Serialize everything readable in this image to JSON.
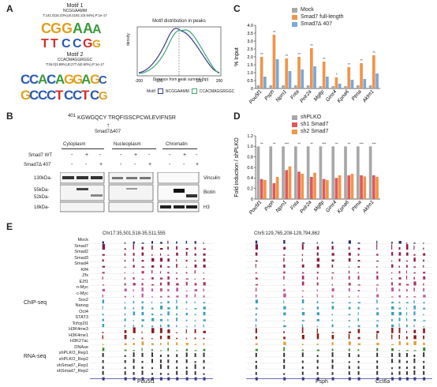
{
  "panels": {
    "A": "A",
    "B": "B",
    "C": "C",
    "D": "D",
    "E": "E"
  },
  "panel_a": {
    "motif1": {
      "title": "Motif 1",
      "seq": "NCGGAAMM",
      "stats": "T:141.0(15.23%),B:3192.1(6.94%),P:1e-17"
    },
    "motif2": {
      "title": "Motif 2",
      "seq": "CCACMAGGRGGC",
      "stats": "T:36.0(3.89%),B:277.6(0.60%),P:1e-17"
    },
    "dist_title": "Motif distribution in peaks",
    "ylabel": "density",
    "xlabel": "Distance from peak summit (bp)",
    "xticks": [
      "-200",
      "-100",
      "0",
      "100",
      "200"
    ],
    "legend": {
      "label": "Motif",
      "m1": "NCGGAAMM",
      "m2": "CCACMAGGRGGC"
    },
    "colors": {
      "m1": "#3a3a8c",
      "m2": "#3aa67a"
    }
  },
  "panel_b": {
    "seq": "KGWGQCY TRQFISSCPCWLEVIFNSR",
    "seq_start": "401",
    "arrow_label": "Smad7Δ407",
    "fractions": [
      "Cytoplasm",
      "Nucleoplasm",
      "Chromatin"
    ],
    "rows": [
      {
        "label": "Smad7 WT",
        "marks": [
          "-",
          "+",
          "-",
          "-",
          "+",
          "-",
          "-",
          "+",
          "-"
        ]
      },
      {
        "label": "Smad7Δ 407",
        "marks": [
          "-",
          "-",
          "+",
          "-",
          "-",
          "+",
          "-",
          "-",
          "+"
        ]
      }
    ],
    "blots": [
      "Vinculin",
      "Biotin",
      "H3"
    ],
    "sizes": [
      "130kDa-",
      "55kDa-",
      "52kDa-",
      "18kDa-"
    ]
  },
  "chart_data": [
    {
      "type": "bar",
      "ylabel": "% Input",
      "ylim": [
        0,
        4.0
      ],
      "yticks": [
        "0",
        "0.5",
        "1.0",
        "1.5",
        "2.0",
        "2.5",
        "3.0",
        "3.5",
        "4.0"
      ],
      "categories": [
        "Pou5f1",
        "Psph",
        "Npm1",
        "Fnta",
        "Polr2a",
        "Mgltp",
        "Ginx4",
        "Kpna6",
        "Ptma",
        "Aklm1"
      ],
      "series": [
        {
          "name": "Mock",
          "color": "#a8a8a8",
          "values": [
            0.2,
            0.2,
            0.2,
            0.2,
            0.2,
            0.15,
            0.15,
            0.15,
            0.2,
            0.2
          ]
        },
        {
          "name": "Smad7 full-length",
          "color": "#f0954a",
          "values": [
            2.0,
            3.4,
            1.9,
            2.0,
            2.55,
            1.7,
            0.7,
            1.35,
            1.6,
            2.1
          ]
        },
        {
          "name": "Smad7∆ 407",
          "color": "#7ba7d9",
          "values": [
            0.75,
            1.85,
            1.1,
            1.2,
            1.4,
            0.75,
            0.3,
            0.55,
            0.6,
            0.95
          ]
        }
      ],
      "sig": [
        "**",
        "**",
        "**",
        "**",
        "**",
        "**",
        "*",
        "**",
        "**",
        "**"
      ]
    },
    {
      "type": "bar",
      "ylabel": "Fold induction / shPLKO",
      "ylim": [
        0,
        1.2
      ],
      "yticks": [
        "0",
        "0.2",
        "0.4",
        "0.6",
        "0.8",
        "1.0",
        "1.2"
      ],
      "categories": [
        "Pou5f1",
        "Psph",
        "Npm1",
        "Fnta",
        "Polr2a",
        "Mgltp",
        "Ginx4",
        "Kpna6",
        "Ptma",
        "Aklm1"
      ],
      "series": [
        {
          "name": "shPLKO",
          "color": "#a8a8a8",
          "values": [
            1,
            1,
            1,
            1,
            1,
            1,
            1,
            1,
            1,
            1
          ]
        },
        {
          "name": "sh1 Smad7",
          "color": "#e05a5a",
          "values": [
            0.38,
            0.3,
            0.55,
            0.52,
            0.42,
            0.38,
            0.4,
            0.45,
            0.45,
            0.45
          ]
        },
        {
          "name": "sh2 Smad7",
          "color": "#f0954a",
          "values": [
            0.36,
            0.42,
            0.62,
            0.48,
            0.5,
            0.36,
            0.45,
            0.48,
            0.43,
            0.42
          ]
        }
      ],
      "sig": [
        "**",
        "**",
        "***",
        "**",
        "**",
        "***",
        "**",
        "**",
        "***",
        "***"
      ]
    }
  ],
  "panel_e": {
    "left_coord": "Chr17:35,501,518-35,511,555",
    "right_coord": "Chr5:129,765,208-129,794,862",
    "group_chip": "ChIP-seq",
    "group_rna": "RNA-seq",
    "tracks": [
      "Mock",
      "Smad7",
      "Smad2",
      "Smad3",
      "Smad4",
      "Klf4",
      "Zfx",
      "E2f1",
      "n-Myc",
      "c-Myc",
      "Sox2",
      "Nanog",
      "Oct4",
      "STAT3",
      "Tcfcp2l1",
      "H3K4me3",
      "H3K4me1",
      "H3K27ac",
      "DNAse",
      "shPLKO_Rep1",
      "shPLKO_Rep2",
      "shSmad7_Rep1",
      "shSmad7_Rep2"
    ],
    "track_colors": [
      "#2a2a6e",
      "#8b1a4a",
      "#8b1a4a",
      "#8b1a4a",
      "#8b1a4a",
      "#a8326a",
      "#a8326a",
      "#a8326a",
      "#c0589a",
      "#c0589a",
      "#3aa0b8",
      "#3aa0b8",
      "#3aa0b8",
      "#3aa0b8",
      "#3aa0b8",
      "#8b1a1a",
      "#8b1a1a",
      "#e0a030",
      "#3a8a3a",
      "#333333",
      "#333333",
      "#333333",
      "#333333"
    ],
    "genes_left": [
      "Pou5f1"
    ],
    "genes_right": [
      "Psph",
      "Cct6a"
    ]
  }
}
